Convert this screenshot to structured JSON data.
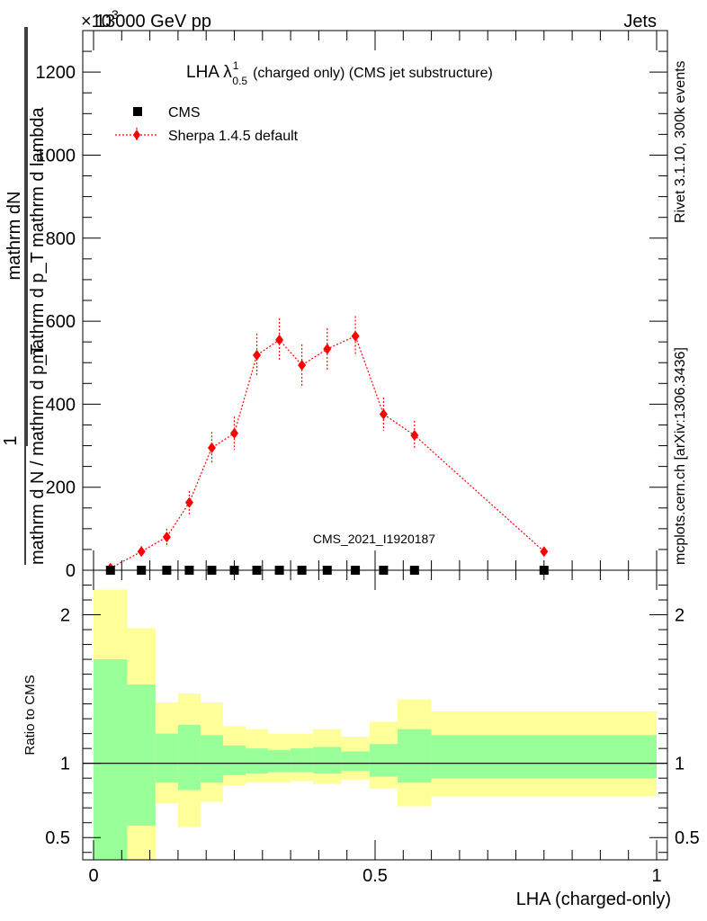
{
  "header": {
    "left": "13000 GeV pp",
    "right": "Jets",
    "exponent": "×10",
    "exponent_power": "3"
  },
  "side_texts": {
    "rivet": "Rivet 3.1.10,  300k events",
    "mcplots": "mcplots.cern.ch [arXiv:1306.3436]"
  },
  "watermark": "CMS_2021_I1920187",
  "legend": {
    "cms": "CMS",
    "sherpa": "Sherpa 1.4.5 default"
  },
  "colors": {
    "data": "#000000",
    "mc": "#ff0000",
    "band_inner": "#99ff99",
    "band_outer": "#ffff99",
    "watermark": "#888888"
  },
  "chart_data": [
    {
      "type": "scatter",
      "title": "LHA λ",
      "title_sup": "1",
      "title_sub": "0.5",
      "title_rest": "(charged only) (CMS jet substructure)",
      "ylabel": {
        "prefix": "1",
        "numerator": "mathrm dN",
        "denominator": "mathrm d p_T mathrm d lambda",
        "outer_denominator": "mathrm d N / mathrm d p_T"
      },
      "xlim": [
        0,
        1
      ],
      "ylim": [
        0,
        1300
      ],
      "yticks": [
        0,
        200,
        400,
        600,
        800,
        1000,
        1200
      ],
      "ytick_labels": [
        "0",
        "200",
        "400",
        "600",
        "800",
        "1000",
        "1200"
      ],
      "series": [
        {
          "name": "CMS",
          "x": [
            0.03,
            0.085,
            0.13,
            0.17,
            0.21,
            0.25,
            0.29,
            0.33,
            0.37,
            0.415,
            0.465,
            0.515,
            0.57,
            0.8
          ],
          "y": [
            0,
            0,
            0,
            0,
            0,
            0,
            0,
            0,
            0,
            0,
            0,
            0,
            0,
            0
          ]
        },
        {
          "name": "Sherpa 1.4.5 default",
          "x": [
            0.03,
            0.085,
            0.13,
            0.17,
            0.21,
            0.25,
            0.29,
            0.33,
            0.37,
            0.415,
            0.465,
            0.515,
            0.57,
            0.8
          ],
          "y": [
            5,
            45,
            80,
            163,
            295,
            330,
            518,
            555,
            494,
            533,
            564,
            376,
            325,
            45
          ],
          "yerr": [
            4,
            13,
            20,
            28,
            38,
            40,
            52,
            52,
            50,
            50,
            48,
            40,
            35,
            10
          ]
        }
      ]
    },
    {
      "type": "area",
      "ylabel": "Ratio to CMS",
      "xlabel": "LHA (charged-only)",
      "xlim": [
        0,
        1
      ],
      "ylim": [
        0.35,
        2.3
      ],
      "yticks": [
        0.5,
        1,
        2
      ],
      "ytick_labels": [
        "0.5",
        "1",
        "2"
      ],
      "xticks": [
        0,
        0.5,
        1
      ],
      "xtick_labels": [
        "0",
        "0.5",
        "1"
      ],
      "bins": [
        {
          "lo": 0.0,
          "hi": 0.06,
          "inner": [
            0.0,
            1.7
          ],
          "outer": [
            0.0,
            2.17
          ]
        },
        {
          "lo": 0.06,
          "hi": 0.11,
          "inner": [
            0.58,
            1.53
          ],
          "outer": [
            0.0,
            1.91
          ]
        },
        {
          "lo": 0.11,
          "hi": 0.15,
          "inner": [
            0.87,
            1.2
          ],
          "outer": [
            0.73,
            1.41
          ]
        },
        {
          "lo": 0.15,
          "hi": 0.19,
          "inner": [
            0.82,
            1.26
          ],
          "outer": [
            0.57,
            1.47
          ]
        },
        {
          "lo": 0.19,
          "hi": 0.23,
          "inner": [
            0.87,
            1.19
          ],
          "outer": [
            0.74,
            1.41
          ]
        },
        {
          "lo": 0.23,
          "hi": 0.27,
          "inner": [
            0.92,
            1.12
          ],
          "outer": [
            0.85,
            1.25
          ]
        },
        {
          "lo": 0.27,
          "hi": 0.31,
          "inner": [
            0.93,
            1.1
          ],
          "outer": [
            0.87,
            1.23
          ]
        },
        {
          "lo": 0.31,
          "hi": 0.35,
          "inner": [
            0.94,
            1.09
          ],
          "outer": [
            0.87,
            1.2
          ]
        },
        {
          "lo": 0.35,
          "hi": 0.39,
          "inner": [
            0.94,
            1.1
          ],
          "outer": [
            0.88,
            1.2
          ]
        },
        {
          "lo": 0.39,
          "hi": 0.44,
          "inner": [
            0.93,
            1.11
          ],
          "outer": [
            0.86,
            1.23
          ]
        },
        {
          "lo": 0.44,
          "hi": 0.49,
          "inner": [
            0.95,
            1.08
          ],
          "outer": [
            0.89,
            1.18
          ]
        },
        {
          "lo": 0.49,
          "hi": 0.54,
          "inner": [
            0.91,
            1.13
          ],
          "outer": [
            0.83,
            1.28
          ]
        },
        {
          "lo": 0.54,
          "hi": 0.6,
          "inner": [
            0.87,
            1.23
          ],
          "outer": [
            0.71,
            1.43
          ]
        },
        {
          "lo": 0.6,
          "hi": 1.0,
          "inner": [
            0.9,
            1.19
          ],
          "outer": [
            0.78,
            1.35
          ]
        }
      ],
      "reference_line": 1
    }
  ]
}
